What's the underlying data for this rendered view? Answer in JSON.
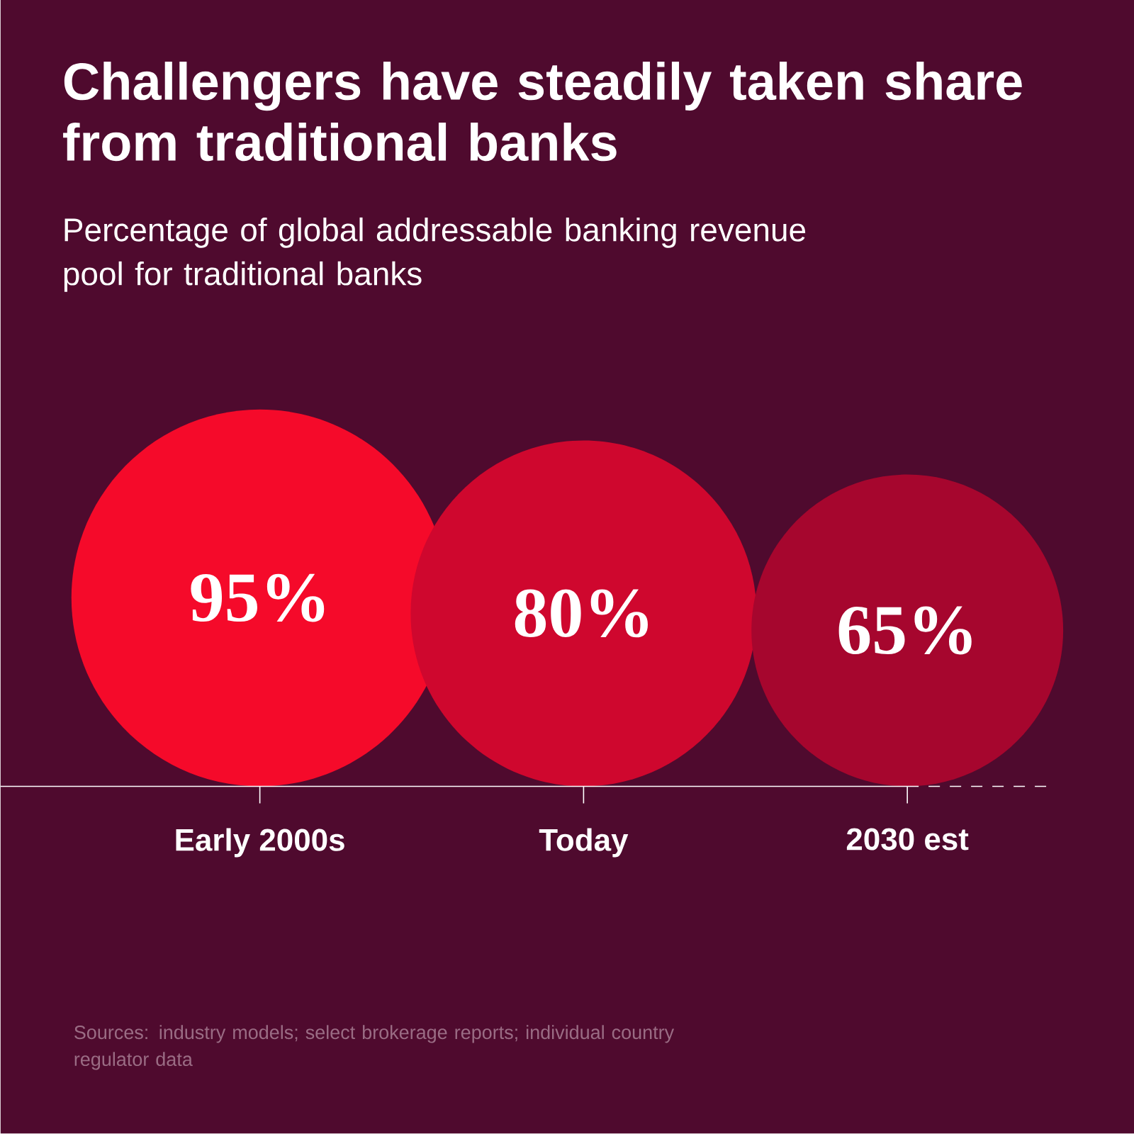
{
  "chart_data": {
    "type": "other",
    "title": "Challengers have steadily taken share from traditional banks",
    "subtitle": "Percentage of global addressable banking revenue pool for traditional banks",
    "categories": [
      "Early 2000s",
      "Today",
      "2030 est"
    ],
    "values": [
      95,
      80,
      65
    ],
    "value_labels": [
      "95%",
      "80%",
      "65%"
    ],
    "colors": [
      "#f50a2a",
      "#cf072e",
      "#a6062e"
    ],
    "annotations": [
      "Sources: industry models; select brokerage reports; individual country regulator data"
    ]
  }
}
